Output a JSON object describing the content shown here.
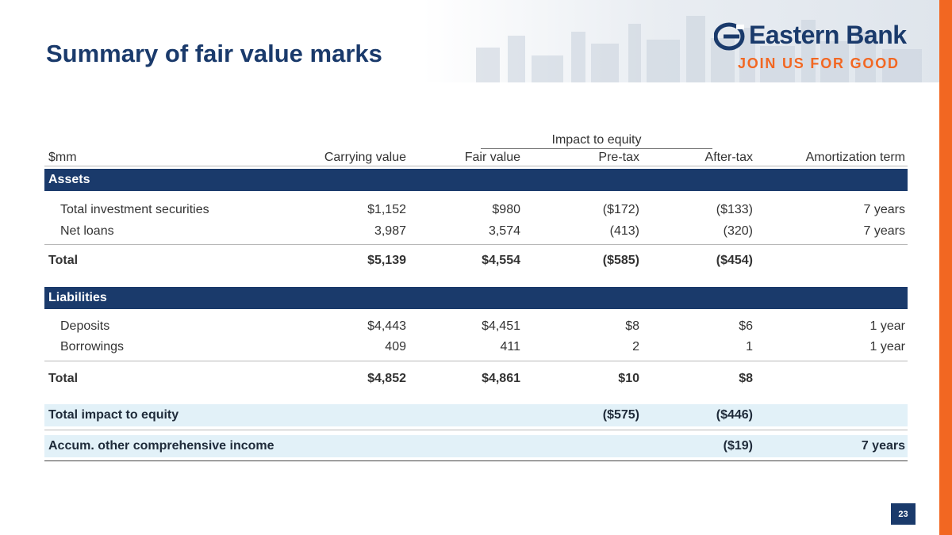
{
  "title": "Summary of fair value marks",
  "logo": {
    "name": "Eastern Bank",
    "tagline": "JOIN US FOR GOOD"
  },
  "colors": {
    "brand_navy": "#1a3a6b",
    "brand_orange": "#f26722",
    "highlight": "#e2f1f8"
  },
  "table": {
    "group_header": "Impact to equity",
    "headers": {
      "unit": "$mm",
      "carrying": "Carrying value",
      "fair": "Fair value",
      "pretax": "Pre-tax",
      "aftertax": "After-tax",
      "amort": "Amortization term"
    },
    "assets": {
      "label": "Assets",
      "rows": [
        {
          "label": "Total investment securities",
          "carrying": "$1,152",
          "fair": "$980",
          "pretax": "($172)",
          "aftertax": "($133)",
          "amort": "7 years"
        },
        {
          "label": "Net loans",
          "carrying": "3,987",
          "fair": "3,574",
          "pretax": "(413)",
          "aftertax": "(320)",
          "amort": "7 years"
        }
      ],
      "total": {
        "label": "Total",
        "carrying": "$5,139",
        "fair": "$4,554",
        "pretax": "($585)",
        "aftertax": "($454)"
      }
    },
    "liabilities": {
      "label": "Liabilities",
      "rows": [
        {
          "label": "Deposits",
          "carrying": "$4,443",
          "fair": "$4,451",
          "pretax": "$8",
          "aftertax": "$6",
          "amort": "1 year"
        },
        {
          "label": "Borrowings",
          "carrying": "409",
          "fair": "411",
          "pretax": "2",
          "aftertax": "1",
          "amort": "1 year"
        }
      ],
      "total": {
        "label": "Total",
        "carrying": "$4,852",
        "fair": "$4,861",
        "pretax": "$10",
        "aftertax": "$8"
      }
    },
    "total_impact": {
      "label": "Total impact to equity",
      "pretax": "($575)",
      "aftertax": "($446)"
    },
    "aoci": {
      "label": "Accum. other comprehensive income",
      "aftertax": "($19)",
      "amort": "7 years"
    }
  },
  "page_number": "23"
}
